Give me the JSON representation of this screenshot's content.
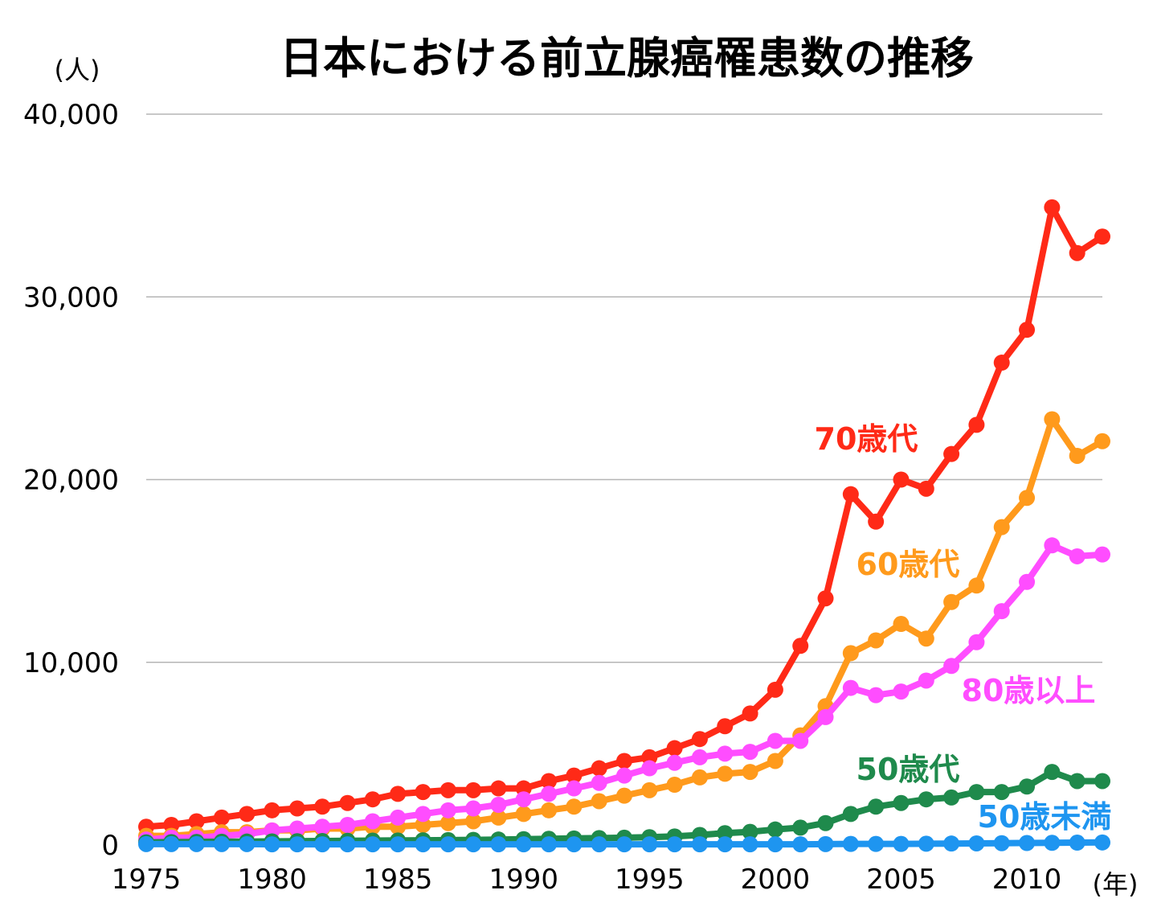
{
  "chart_data": {
    "type": "line",
    "title": "日本における前立腺癌罹患数の推移",
    "y_unit": "(人)",
    "x_unit": "(年)",
    "ylim": [
      0,
      40000
    ],
    "y_ticks": [
      0,
      10000,
      20000,
      30000,
      40000
    ],
    "y_tick_labels": [
      "0",
      "10,000",
      "20,000",
      "30,000",
      "40,000"
    ],
    "x_ticks": [
      1975,
      1980,
      1985,
      1990,
      1995,
      2000,
      2005,
      2010
    ],
    "x_tick_labels": [
      "1975",
      "1980",
      "1985",
      "1990",
      "1995",
      "2000",
      "2005",
      "2010"
    ],
    "xlim": [
      1975,
      2013
    ],
    "grid": true,
    "legend": "inline labels",
    "x": [
      1975,
      1976,
      1977,
      1978,
      1979,
      1980,
      1981,
      1982,
      1983,
      1984,
      1985,
      1986,
      1987,
      1988,
      1989,
      1990,
      1991,
      1992,
      1993,
      1994,
      1995,
      1996,
      1997,
      1998,
      1999,
      2000,
      2001,
      2002,
      2003,
      2004,
      2005,
      2006,
      2007,
      2008,
      2009,
      2010,
      2011,
      2012,
      2013
    ],
    "series": [
      {
        "name": "70歳代",
        "color": "#ff2a17",
        "values": [
          1000,
          1100,
          1300,
          1500,
          1700,
          1900,
          2000,
          2100,
          2300,
          2500,
          2800,
          2900,
          3000,
          3000,
          3100,
          3100,
          3500,
          3800,
          4200,
          4600,
          4800,
          5300,
          5800,
          6500,
          7200,
          8500,
          10900,
          13500,
          19200,
          17700,
          20000,
          19500,
          21400,
          23000,
          26400,
          28200,
          34900,
          32400,
          33300
        ]
      },
      {
        "name": "60歳代",
        "color": "#ff9a1c",
        "values": [
          500,
          500,
          600,
          700,
          700,
          800,
          800,
          900,
          900,
          1000,
          1000,
          1100,
          1200,
          1300,
          1500,
          1700,
          1900,
          2100,
          2400,
          2700,
          3000,
          3300,
          3700,
          3900,
          4000,
          4600,
          6000,
          7600,
          10500,
          11200,
          12100,
          11300,
          13300,
          14200,
          17400,
          19000,
          23300,
          21300,
          22100
        ]
      },
      {
        "name": "80歳以上",
        "color": "#ff4dff",
        "values": [
          300,
          400,
          400,
          500,
          600,
          800,
          900,
          1000,
          1100,
          1300,
          1500,
          1700,
          1900,
          2000,
          2200,
          2500,
          2800,
          3100,
          3400,
          3800,
          4200,
          4500,
          4800,
          5000,
          5100,
          5700,
          5700,
          7000,
          8600,
          8200,
          8400,
          9000,
          9800,
          11100,
          12800,
          14400,
          16400,
          15800,
          15900
        ]
      },
      {
        "name": "50歳代",
        "color": "#1f8a4c",
        "values": [
          150,
          160,
          170,
          180,
          190,
          200,
          210,
          220,
          230,
          240,
          250,
          260,
          270,
          280,
          300,
          320,
          340,
          360,
          380,
          400,
          430,
          470,
          550,
          650,
          720,
          850,
          950,
          1200,
          1700,
          2100,
          2300,
          2500,
          2600,
          2900,
          2900,
          3200,
          4000,
          3500,
          3500
        ]
      },
      {
        "name": "50歳未満",
        "color": "#1e95f0",
        "values": [
          50,
          50,
          50,
          50,
          50,
          40,
          40,
          40,
          40,
          40,
          40,
          40,
          40,
          40,
          40,
          40,
          40,
          40,
          40,
          40,
          40,
          40,
          40,
          40,
          40,
          40,
          40,
          50,
          60,
          60,
          60,
          70,
          80,
          90,
          100,
          110,
          120,
          130,
          140
        ]
      }
    ]
  }
}
